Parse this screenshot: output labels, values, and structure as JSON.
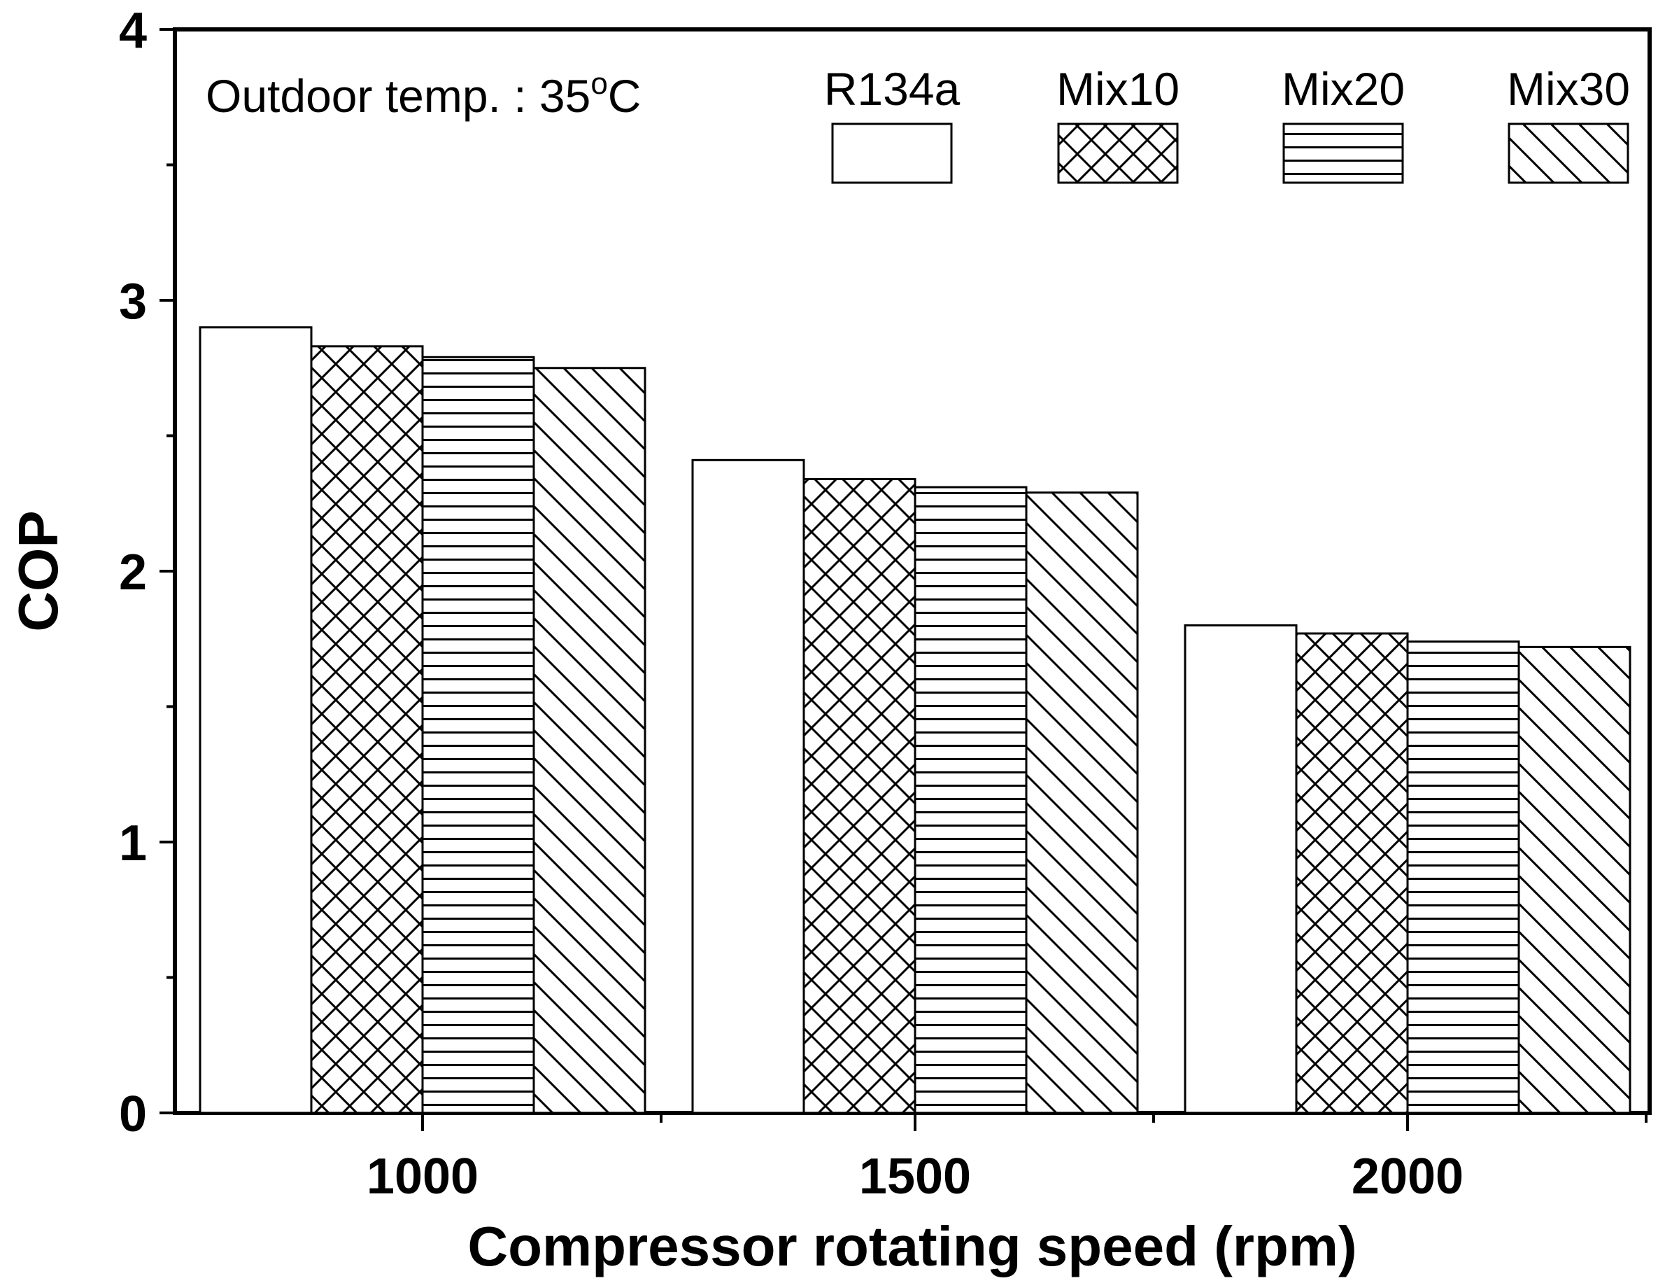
{
  "chart_data": {
    "type": "bar",
    "categories": [
      "1000",
      "1500",
      "2000"
    ],
    "series": [
      {
        "name": "R134a",
        "values": [
          2.9,
          2.41,
          1.8
        ],
        "pattern": "none"
      },
      {
        "name": "Mix10",
        "values": [
          2.83,
          2.34,
          1.77
        ],
        "pattern": "crosshatch"
      },
      {
        "name": "Mix20",
        "values": [
          2.79,
          2.31,
          1.74
        ],
        "pattern": "horizontal"
      },
      {
        "name": "Mix30",
        "values": [
          2.75,
          2.29,
          1.72
        ],
        "pattern": "diagonal"
      }
    ],
    "xlabel": "Compressor rotating speed (rpm)",
    "ylabel": "COP",
    "ylim": [
      0,
      4
    ],
    "yticks": [
      "0",
      "1",
      "2",
      "3",
      "4"
    ],
    "annotation": {
      "main": "Outdoor temp. : 35",
      "superscript": "o",
      "unit": "C"
    },
    "legend_position": "top-right",
    "colors": {
      "stroke": "#000000",
      "fill": "#ffffff"
    }
  }
}
